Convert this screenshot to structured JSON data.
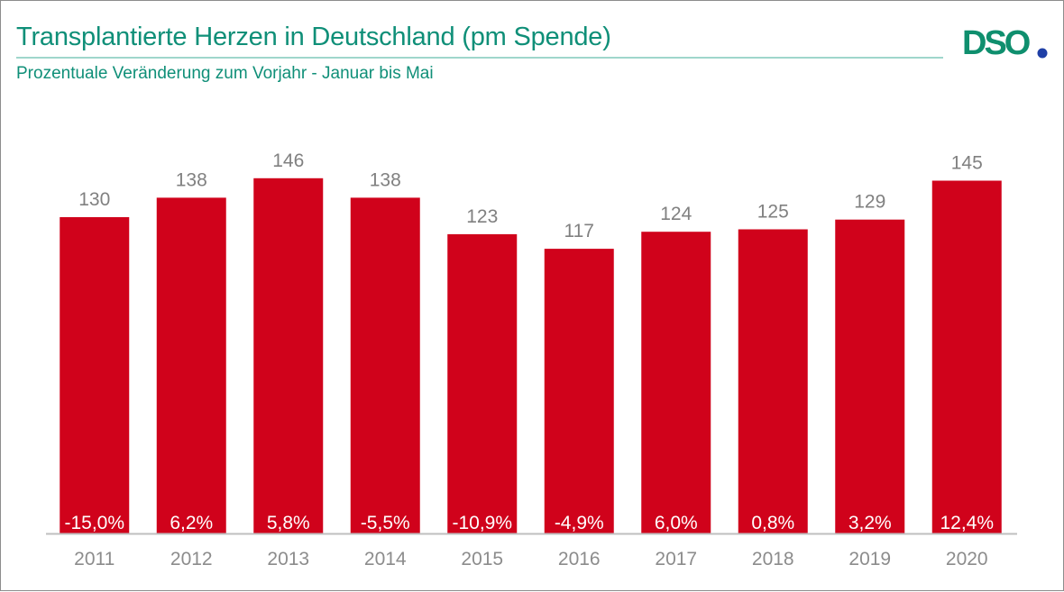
{
  "header": {
    "title": "Transplantierte Herzen in Deutschland (pm Spende)",
    "subtitle": "Prozentuale Veränderung zum Vorjahr - Januar bis Mai",
    "logo_text": "DSO"
  },
  "colors": {
    "bar": "#d0021b",
    "title": "#0f8f78",
    "rule": "#9fd6cc",
    "axis_text": "#8c8c8c",
    "value_label": "#808080",
    "logo_green": "#0f8f6e",
    "logo_dot": "#1f3fa6"
  },
  "chart_data": {
    "type": "bar",
    "title": "Transplantierte Herzen in Deutschland (pm Spende)",
    "subtitle": "Prozentuale Veränderung zum Vorjahr - Januar bis Mai",
    "xlabel": "",
    "ylabel": "",
    "categories": [
      "2011",
      "2012",
      "2013",
      "2014",
      "2015",
      "2016",
      "2017",
      "2018",
      "2019",
      "2020"
    ],
    "values": [
      130,
      138,
      146,
      138,
      123,
      117,
      124,
      125,
      129,
      145
    ],
    "value_labels": [
      "130",
      "138",
      "146",
      "138",
      "123",
      "117",
      "124",
      "125",
      "129",
      "145"
    ],
    "change_labels": [
      "-15,0%",
      "6,2%",
      "5,8%",
      "-5,5%",
      "-10,9%",
      "-4,9%",
      "6,0%",
      "0,8%",
      "3,2%",
      "12,4%"
    ],
    "ylim": [
      0,
      160
    ],
    "grid": false,
    "legend": "none"
  }
}
